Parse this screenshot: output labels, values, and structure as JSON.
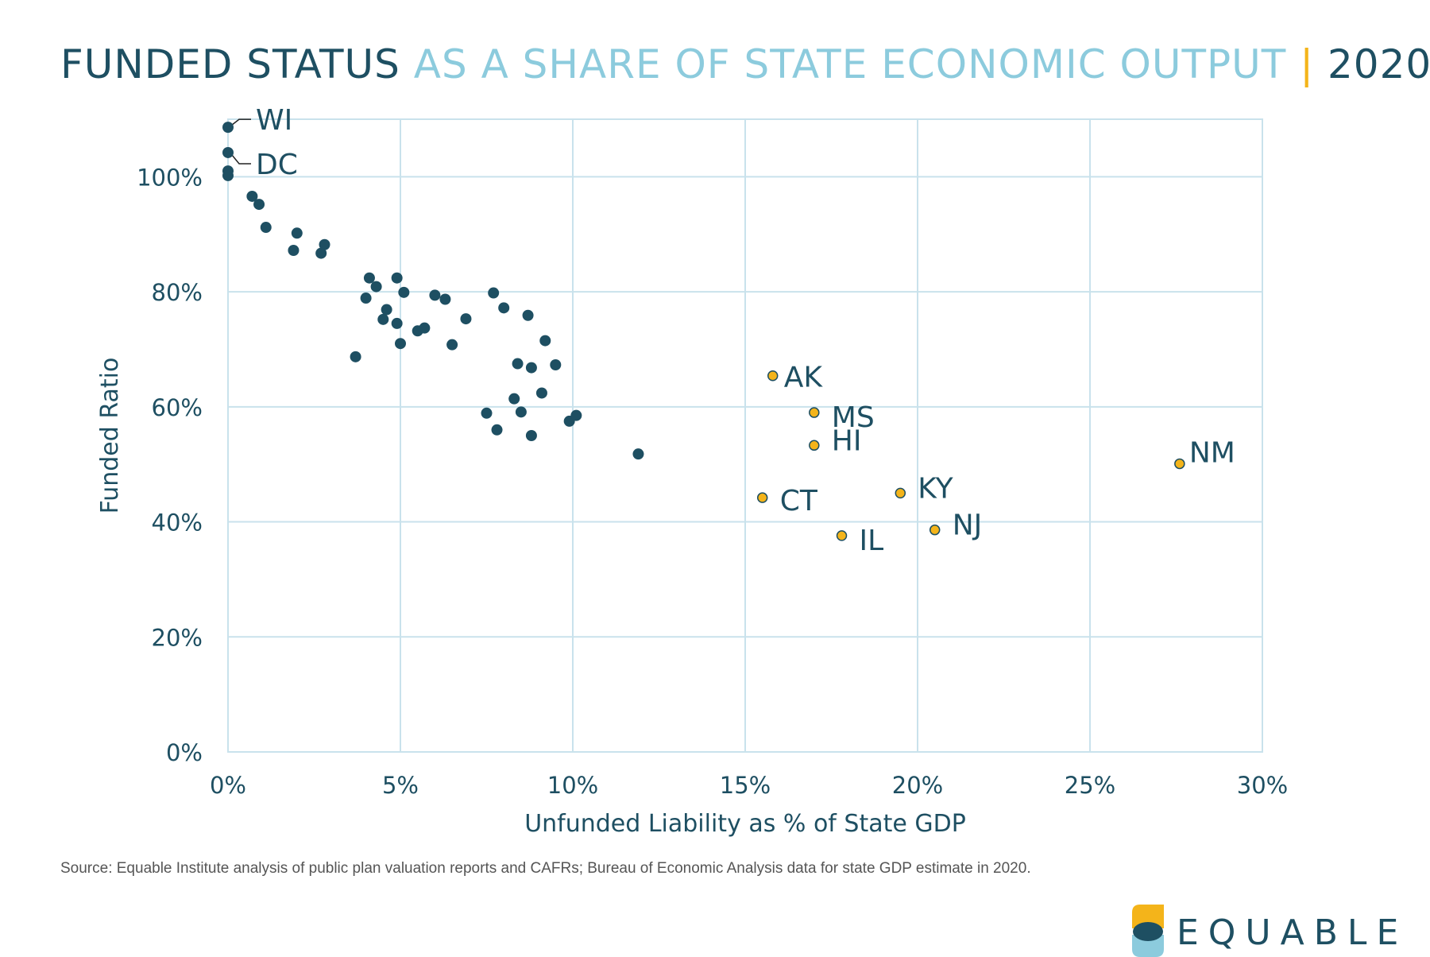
{
  "header": {
    "title_main": "FUNDED STATUS",
    "title_sub": "AS A SHARE OF STATE ECONOMIC OUTPUT",
    "title_sep": "|",
    "title_year": "2020"
  },
  "footer": {
    "source": "Source: Equable Institute analysis of public plan valuation reports and CAFRs; Bureau of Economic Analysis data for state GDP estimate in 2020."
  },
  "logo": {
    "text": "EQUABLE"
  },
  "colors": {
    "dark": "#1e4f62",
    "light": "#8ccbdd",
    "accent": "#f4b41a",
    "grid": "#c9e2ec"
  },
  "chart_data": {
    "type": "scatter",
    "xlabel": "Unfunded Liability as % of State GDP",
    "ylabel": "Funded Ratio",
    "xlim": [
      0,
      30
    ],
    "ylim": [
      0,
      110
    ],
    "x_ticks": [
      0,
      5,
      10,
      15,
      20,
      25,
      30
    ],
    "x_tick_labels": [
      "0%",
      "5%",
      "10%",
      "15%",
      "20%",
      "25%",
      "30%"
    ],
    "y_ticks": [
      0,
      20,
      40,
      60,
      80,
      100
    ],
    "y_tick_labels": [
      "0%",
      "20%",
      "40%",
      "60%",
      "80%",
      "100%"
    ],
    "grid": true,
    "series": [
      {
        "points": [
          {
            "x": 0.0,
            "y": 108.6,
            "label": "WI"
          },
          {
            "x": 0.0,
            "y": 104.2,
            "label": "DC"
          },
          {
            "x": 0.0,
            "y": 101.0
          },
          {
            "x": 0.0,
            "y": 100.2
          },
          {
            "x": 0.7,
            "y": 96.6
          },
          {
            "x": 0.9,
            "y": 95.2
          },
          {
            "x": 1.1,
            "y": 91.2
          },
          {
            "x": 1.9,
            "y": 87.2
          },
          {
            "x": 2.0,
            "y": 90.2
          },
          {
            "x": 2.7,
            "y": 86.7
          },
          {
            "x": 2.8,
            "y": 88.2
          },
          {
            "x": 3.7,
            "y": 68.7
          },
          {
            "x": 4.0,
            "y": 78.9
          },
          {
            "x": 4.1,
            "y": 82.4
          },
          {
            "x": 4.3,
            "y": 80.9
          },
          {
            "x": 4.5,
            "y": 75.2
          },
          {
            "x": 4.6,
            "y": 76.9
          },
          {
            "x": 4.9,
            "y": 82.4
          },
          {
            "x": 4.9,
            "y": 74.5
          },
          {
            "x": 5.0,
            "y": 71.0
          },
          {
            "x": 5.1,
            "y": 79.9
          },
          {
            "x": 5.5,
            "y": 73.2
          },
          {
            "x": 5.7,
            "y": 73.7
          },
          {
            "x": 6.0,
            "y": 79.4
          },
          {
            "x": 6.3,
            "y": 78.7
          },
          {
            "x": 6.5,
            "y": 70.8
          },
          {
            "x": 6.9,
            "y": 75.3
          },
          {
            "x": 7.5,
            "y": 58.9
          },
          {
            "x": 7.7,
            "y": 79.8
          },
          {
            "x": 7.8,
            "y": 56.0
          },
          {
            "x": 8.0,
            "y": 77.2
          },
          {
            "x": 8.3,
            "y": 61.4
          },
          {
            "x": 8.4,
            "y": 67.5
          },
          {
            "x": 8.5,
            "y": 59.1
          },
          {
            "x": 8.7,
            "y": 75.9
          },
          {
            "x": 8.8,
            "y": 66.8
          },
          {
            "x": 8.8,
            "y": 55.0
          },
          {
            "x": 9.1,
            "y": 62.4
          },
          {
            "x": 9.2,
            "y": 71.5
          },
          {
            "x": 9.5,
            "y": 67.3
          },
          {
            "x": 9.9,
            "y": 57.5
          },
          {
            "x": 10.1,
            "y": 58.5
          },
          {
            "x": 11.9,
            "y": 51.8
          }
        ]
      },
      {
        "points": [
          {
            "x": 15.8,
            "y": 65.4,
            "label": "AK"
          },
          {
            "x": 17.0,
            "y": 59.0,
            "label": "MS"
          },
          {
            "x": 17.0,
            "y": 53.3,
            "label": "HI"
          },
          {
            "x": 15.5,
            "y": 44.2,
            "label": "CT"
          },
          {
            "x": 19.5,
            "y": 45.0,
            "label": "KY"
          },
          {
            "x": 17.8,
            "y": 37.6,
            "label": "IL"
          },
          {
            "x": 20.5,
            "y": 38.6,
            "label": "NJ"
          },
          {
            "x": 27.6,
            "y": 50.1,
            "label": "NM"
          }
        ]
      }
    ]
  }
}
